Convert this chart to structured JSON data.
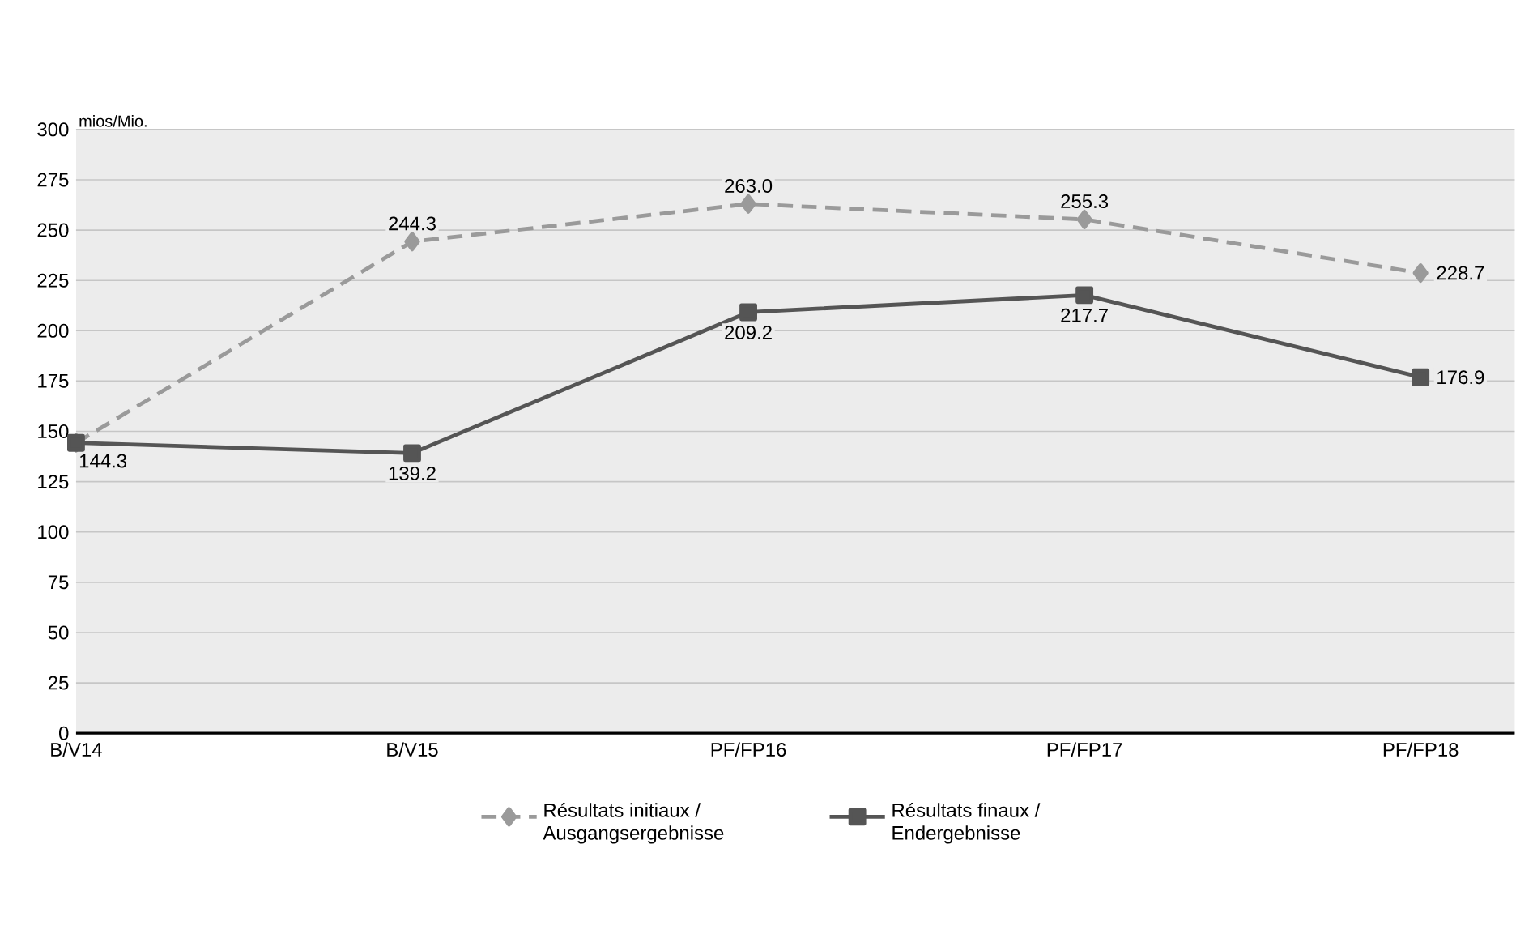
{
  "chart_data": {
    "type": "line",
    "ylabel": "mios/Mio.",
    "categories": [
      "B/V14",
      "B/V15",
      "PF/FP16",
      "PF/FP17",
      "PF/FP18"
    ],
    "series": [
      {
        "name": "Résultats initiaux / Ausgangsergebnisse",
        "color": "#9a9a9a",
        "marker": "diamond",
        "line_style": "dashed",
        "values": [
          144.3,
          244.3,
          263.0,
          255.3,
          228.7
        ],
        "value_labels": [
          null,
          "244.3",
          "263.0",
          "255.3",
          "228.7"
        ]
      },
      {
        "name": "Résultats finaux / Endergebnisse",
        "color": "#555555",
        "marker": "square",
        "line_style": "solid",
        "values": [
          144.3,
          139.2,
          209.2,
          217.7,
          176.9
        ],
        "value_labels": [
          "144.3",
          "139.2",
          "209.2",
          "217.7",
          "176.9"
        ]
      }
    ],
    "ylim": [
      0,
      300
    ],
    "yticks": [
      0,
      25,
      50,
      75,
      100,
      125,
      150,
      175,
      200,
      225,
      250,
      275,
      300
    ],
    "grid": "y",
    "legend": "bottom"
  }
}
